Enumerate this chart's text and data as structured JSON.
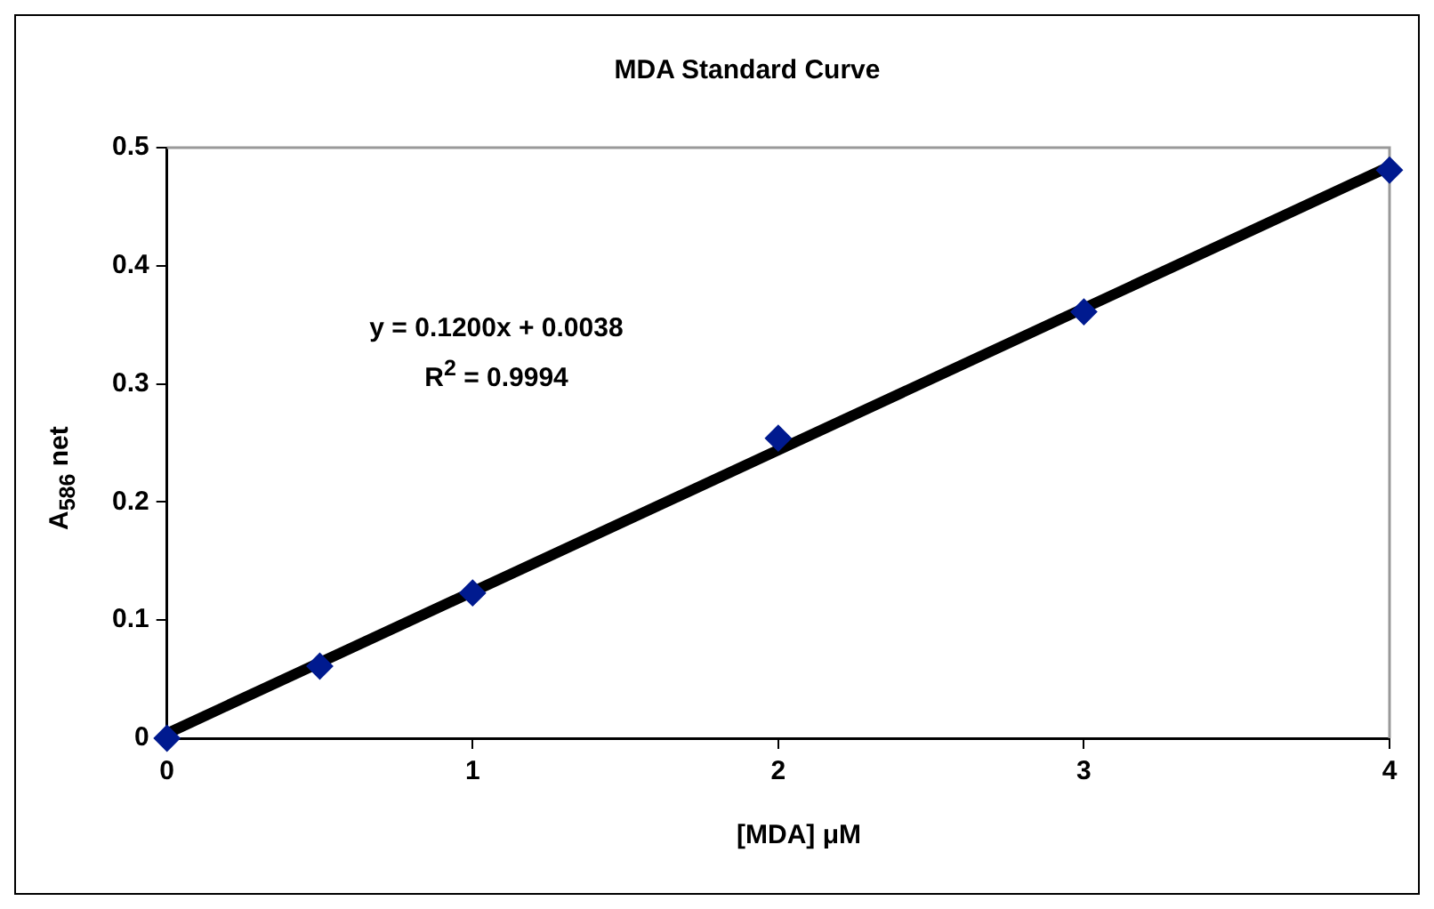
{
  "chart_data": {
    "type": "scatter",
    "title": "MDA Standard Curve",
    "xlabel": "[MDA] μM",
    "ylabel": "A$_{586}$ net",
    "xlim": [
      0,
      4
    ],
    "xticks": [
      0,
      1,
      2,
      3,
      4
    ],
    "ylim": [
      0,
      0.5
    ],
    "yticks": [
      0,
      0.1,
      0.2,
      0.3,
      0.4,
      0.5
    ],
    "grid": false,
    "legend": false,
    "series": [
      {
        "type": "scatter",
        "color": "#001a8f",
        "marker": "diamond",
        "x": [
          0,
          0.5,
          1,
          2,
          3,
          4
        ],
        "values": [
          0,
          0.061,
          0.123,
          0.254,
          0.361,
          0.481
        ]
      },
      {
        "type": "line",
        "color": "#000000",
        "x": [
          0,
          4
        ],
        "values": [
          0.004,
          0.484
        ]
      }
    ],
    "annotations": [
      "y = 0.1200x + 0.0038",
      "R$^{2}$ = 0.9994"
    ]
  }
}
